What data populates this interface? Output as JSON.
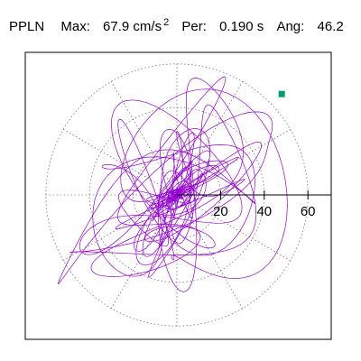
{
  "header": {
    "station": "PPLN",
    "max_label": "Max:",
    "max_value": "67.9 cm/s",
    "max_exp": "2",
    "per_label": "Per:",
    "per_value": "0.190 s",
    "ang_label": "Ang:",
    "ang_value": "46.2"
  },
  "chart_data": {
    "type": "polar-orbit",
    "title": "",
    "xlabel": "",
    "ylabel": "",
    "r_ticks": [
      20,
      40,
      60
    ],
    "r_tick_labels": [
      "20",
      "40",
      "60"
    ],
    "r_max": 67.9,
    "grid": "dotted polar rings at 20, 40, 60 with radial spokes every 30 degrees",
    "trace_color": "#9400D3",
    "marker_color": "#009E73",
    "marker_point": {
      "x": 48,
      "y": 46.2
    },
    "principal_angle_deg": 46.2
  }
}
